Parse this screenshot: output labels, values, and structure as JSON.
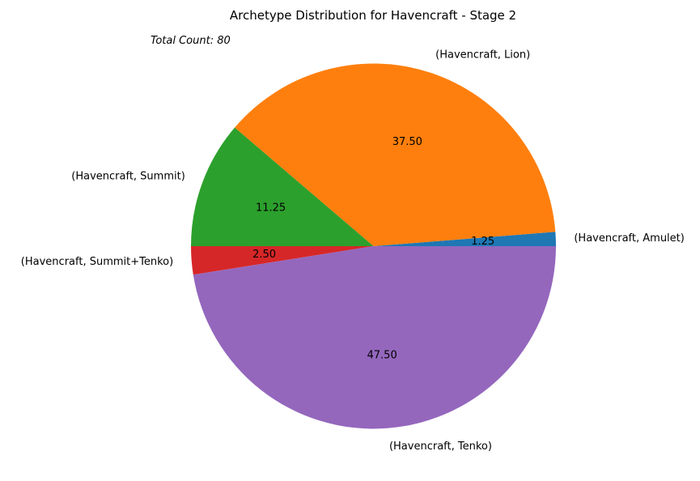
{
  "chart_data": {
    "type": "pie",
    "title": "Archetype Distribution for Havencraft - Stage 2",
    "annotation": "Total Count: 80",
    "legend": "none",
    "start_angle_deg": 0,
    "direction": "counterclockwise",
    "slices": [
      {
        "label": "(Havencraft, Amulet)",
        "value": 1.25,
        "pct_label": "1.25",
        "color": "#1f77b4"
      },
      {
        "label": "(Havencraft, Lion)",
        "value": 37.5,
        "pct_label": "37.50",
        "color": "#ff7f0e"
      },
      {
        "label": "(Havencraft, Summit)",
        "value": 11.25,
        "pct_label": "11.25",
        "color": "#2ca02c"
      },
      {
        "label": "(Havencraft, Summit+Tenko)",
        "value": 2.5,
        "pct_label": "2.50",
        "color": "#d62728"
      },
      {
        "label": "(Havencraft, Tenko)",
        "value": 47.5,
        "pct_label": "47.50",
        "color": "#9467bd"
      }
    ]
  }
}
